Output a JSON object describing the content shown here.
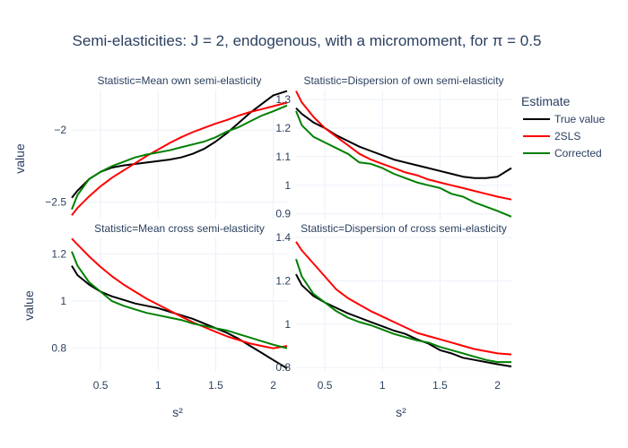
{
  "title": "Semi-elasticities: J = 2, endogenous, with a micromoment,  for π = 0.5",
  "legend": {
    "title": "Estimate",
    "items": [
      {
        "label": "True value",
        "color": "#000000"
      },
      {
        "label": "2SLS",
        "color": "#ff0000"
      },
      {
        "label": "Corrected",
        "color": "#008000"
      }
    ]
  },
  "axis_titles": {
    "x": "s²",
    "y": "value"
  },
  "chart_data": [
    {
      "type": "line",
      "title": "Statistic=Mean own semi-elasticity",
      "xlim": [
        0.25,
        2.12
      ],
      "ylim": [
        -2.62,
        -1.72
      ],
      "xticks": [
        0.5,
        1,
        1.5,
        2
      ],
      "yticks": [
        -2.5,
        -2
      ],
      "ytick_labels": [
        "−2.5",
        "−2"
      ],
      "x": [
        0.25,
        0.3,
        0.4,
        0.5,
        0.6,
        0.7,
        0.8,
        0.9,
        1.0,
        1.1,
        1.2,
        1.3,
        1.4,
        1.5,
        1.6,
        1.7,
        1.8,
        1.9,
        2.0,
        2.12
      ],
      "series": [
        {
          "name": "True value",
          "color": "#000000",
          "values": [
            -2.47,
            -2.42,
            -2.34,
            -2.29,
            -2.26,
            -2.245,
            -2.235,
            -2.225,
            -2.215,
            -2.205,
            -2.19,
            -2.165,
            -2.13,
            -2.08,
            -2.02,
            -1.95,
            -1.88,
            -1.82,
            -1.76,
            -1.73
          ]
        },
        {
          "name": "2SLS",
          "color": "#ff0000",
          "values": [
            -2.59,
            -2.54,
            -2.46,
            -2.39,
            -2.33,
            -2.28,
            -2.23,
            -2.18,
            -2.135,
            -2.09,
            -2.05,
            -2.015,
            -1.985,
            -1.955,
            -1.93,
            -1.9,
            -1.875,
            -1.855,
            -1.835,
            -1.81
          ]
        },
        {
          "name": "Corrected",
          "color": "#008000",
          "values": [
            -2.55,
            -2.45,
            -2.34,
            -2.29,
            -2.25,
            -2.22,
            -2.19,
            -2.17,
            -2.155,
            -2.14,
            -2.12,
            -2.1,
            -2.08,
            -2.05,
            -2.01,
            -1.98,
            -1.94,
            -1.9,
            -1.87,
            -1.83
          ]
        }
      ]
    },
    {
      "type": "line",
      "title": "Statistic=Dispersion of own semi-elasticity",
      "xlim": [
        0.25,
        2.12
      ],
      "ylim": [
        0.88,
        1.335
      ],
      "xticks": [
        0.5,
        1,
        1.5,
        2
      ],
      "yticks": [
        0.9,
        1,
        1.1,
        1.2,
        1.3
      ],
      "ytick_labels": [
        "0.9",
        "1",
        "1.1",
        "1.2",
        "1.3"
      ],
      "x": [
        0.25,
        0.3,
        0.4,
        0.5,
        0.6,
        0.7,
        0.8,
        0.9,
        1.0,
        1.1,
        1.2,
        1.3,
        1.4,
        1.5,
        1.6,
        1.7,
        1.8,
        1.9,
        2.0,
        2.12
      ],
      "series": [
        {
          "name": "True value",
          "color": "#000000",
          "values": [
            1.27,
            1.25,
            1.22,
            1.2,
            1.175,
            1.155,
            1.135,
            1.12,
            1.105,
            1.09,
            1.08,
            1.07,
            1.06,
            1.05,
            1.04,
            1.03,
            1.025,
            1.025,
            1.03,
            1.06
          ]
        },
        {
          "name": "2SLS",
          "color": "#ff0000",
          "values": [
            1.33,
            1.29,
            1.24,
            1.2,
            1.17,
            1.14,
            1.11,
            1.09,
            1.075,
            1.06,
            1.045,
            1.035,
            1.02,
            1.01,
            1.0,
            0.99,
            0.98,
            0.97,
            0.96,
            0.95
          ]
        },
        {
          "name": "Corrected",
          "color": "#008000",
          "values": [
            1.26,
            1.21,
            1.17,
            1.15,
            1.13,
            1.11,
            1.08,
            1.075,
            1.06,
            1.04,
            1.025,
            1.01,
            1.0,
            0.99,
            0.97,
            0.96,
            0.94,
            0.925,
            0.91,
            0.89
          ]
        }
      ]
    },
    {
      "type": "line",
      "title": "Statistic=Mean cross semi-elasticity",
      "xlim": [
        0.25,
        2.12
      ],
      "ylim": [
        0.7,
        1.27
      ],
      "xticks": [
        0.5,
        1,
        1.5,
        2
      ],
      "xtick_labels": [
        "0.5",
        "1",
        "1.5",
        "2"
      ],
      "yticks": [
        0.8,
        1,
        1.2
      ],
      "ytick_labels": [
        "0.8",
        "1",
        "1.2"
      ],
      "x": [
        0.25,
        0.3,
        0.4,
        0.5,
        0.6,
        0.7,
        0.8,
        0.9,
        1.0,
        1.1,
        1.2,
        1.3,
        1.4,
        1.5,
        1.6,
        1.7,
        1.8,
        1.9,
        2.0,
        2.12
      ],
      "series": [
        {
          "name": "True value",
          "color": "#000000",
          "values": [
            1.15,
            1.11,
            1.07,
            1.04,
            1.02,
            1.005,
            0.99,
            0.98,
            0.97,
            0.955,
            0.94,
            0.925,
            0.905,
            0.885,
            0.865,
            0.84,
            0.81,
            0.78,
            0.75,
            0.715
          ]
        },
        {
          "name": "2SLS",
          "color": "#ff0000",
          "values": [
            1.265,
            1.24,
            1.19,
            1.145,
            1.105,
            1.07,
            1.04,
            1.01,
            0.985,
            0.96,
            0.935,
            0.91,
            0.89,
            0.87,
            0.85,
            0.835,
            0.82,
            0.81,
            0.8,
            0.81
          ]
        },
        {
          "name": "Corrected",
          "color": "#008000",
          "values": [
            1.21,
            1.15,
            1.08,
            1.04,
            1.0,
            0.98,
            0.965,
            0.95,
            0.94,
            0.93,
            0.92,
            0.905,
            0.895,
            0.885,
            0.875,
            0.86,
            0.845,
            0.83,
            0.815,
            0.8
          ]
        }
      ]
    },
    {
      "type": "line",
      "title": "Statistic=Dispersion of cross semi-elasticity",
      "xlim": [
        0.25,
        2.12
      ],
      "ylim": [
        0.78,
        1.4
      ],
      "xticks": [
        0.5,
        1,
        1.5,
        2
      ],
      "xtick_labels": [
        "0.5",
        "1",
        "1.5",
        "2"
      ],
      "yticks": [
        0.8,
        1,
        1.2,
        1.4
      ],
      "ytick_labels": [
        "0.8",
        "1",
        "1.2",
        "1.4"
      ],
      "x": [
        0.25,
        0.3,
        0.4,
        0.5,
        0.6,
        0.7,
        0.8,
        0.9,
        1.0,
        1.1,
        1.2,
        1.3,
        1.4,
        1.5,
        1.6,
        1.7,
        1.8,
        1.9,
        2.0,
        2.12
      ],
      "series": [
        {
          "name": "True value",
          "color": "#000000",
          "values": [
            1.23,
            1.18,
            1.13,
            1.1,
            1.075,
            1.05,
            1.03,
            1.01,
            0.99,
            0.97,
            0.955,
            0.93,
            0.91,
            0.88,
            0.865,
            0.845,
            0.835,
            0.825,
            0.815,
            0.805
          ]
        },
        {
          "name": "2SLS",
          "color": "#ff0000",
          "values": [
            1.38,
            1.34,
            1.28,
            1.22,
            1.16,
            1.12,
            1.09,
            1.06,
            1.035,
            1.01,
            0.985,
            0.96,
            0.945,
            0.93,
            0.915,
            0.9,
            0.885,
            0.875,
            0.865,
            0.86
          ]
        },
        {
          "name": "Corrected",
          "color": "#008000",
          "values": [
            1.3,
            1.22,
            1.14,
            1.1,
            1.06,
            1.03,
            1.01,
            0.995,
            0.975,
            0.955,
            0.94,
            0.925,
            0.915,
            0.895,
            0.88,
            0.865,
            0.85,
            0.835,
            0.825,
            0.825
          ]
        }
      ]
    }
  ]
}
